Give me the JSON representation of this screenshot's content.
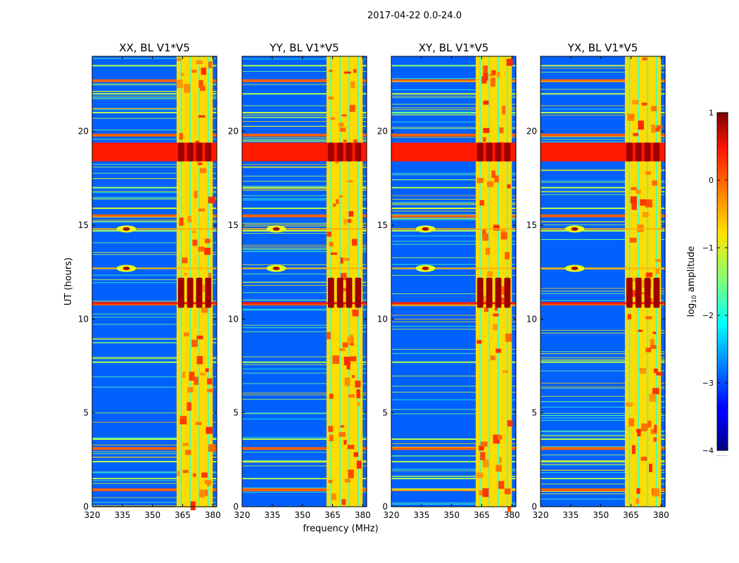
{
  "chart_data": {
    "type": "heatmap",
    "suptitle": "2017-04-22 0.0-24.0",
    "xlabel": "frequency (MHz)",
    "ylabel": "UT (hours)",
    "xlim": [
      320,
      382
    ],
    "ylim": [
      0,
      24
    ],
    "xticks": [
      320,
      335,
      350,
      365,
      380
    ],
    "yticks": [
      0,
      5,
      10,
      15,
      20
    ],
    "panels": [
      {
        "title": "XX, BL V1*V5"
      },
      {
        "title": "YY, BL V1*V5"
      },
      {
        "title": "XY, BL V1*V5"
      },
      {
        "title": "YX, BL V1*V5"
      }
    ],
    "colorbar": {
      "label": "log",
      "label_sub": "10",
      "label_rest": " amplitude",
      "range": [
        -4,
        1
      ],
      "ticks": [
        "1",
        "0",
        "−1",
        "−2",
        "−3",
        "−4"
      ],
      "colormap": "jet"
    },
    "features": {
      "rfi_band_mhz": [
        362,
        380
      ],
      "strong_bands_ut": [
        [
          18.4,
          19.4
        ],
        [
          10.6,
          12.2
        ]
      ],
      "horizontal_rfi_ut": [
        0.9,
        1.5,
        2.4,
        3.1,
        3.6,
        7.7,
        10.8,
        12.7,
        14.7,
        15.5,
        15.9,
        17.0,
        19.8,
        21.0,
        22.0,
        22.7,
        23.5
      ],
      "bright_points": [
        [
          337,
          14.8
        ],
        [
          337,
          12.7
        ]
      ]
    }
  }
}
